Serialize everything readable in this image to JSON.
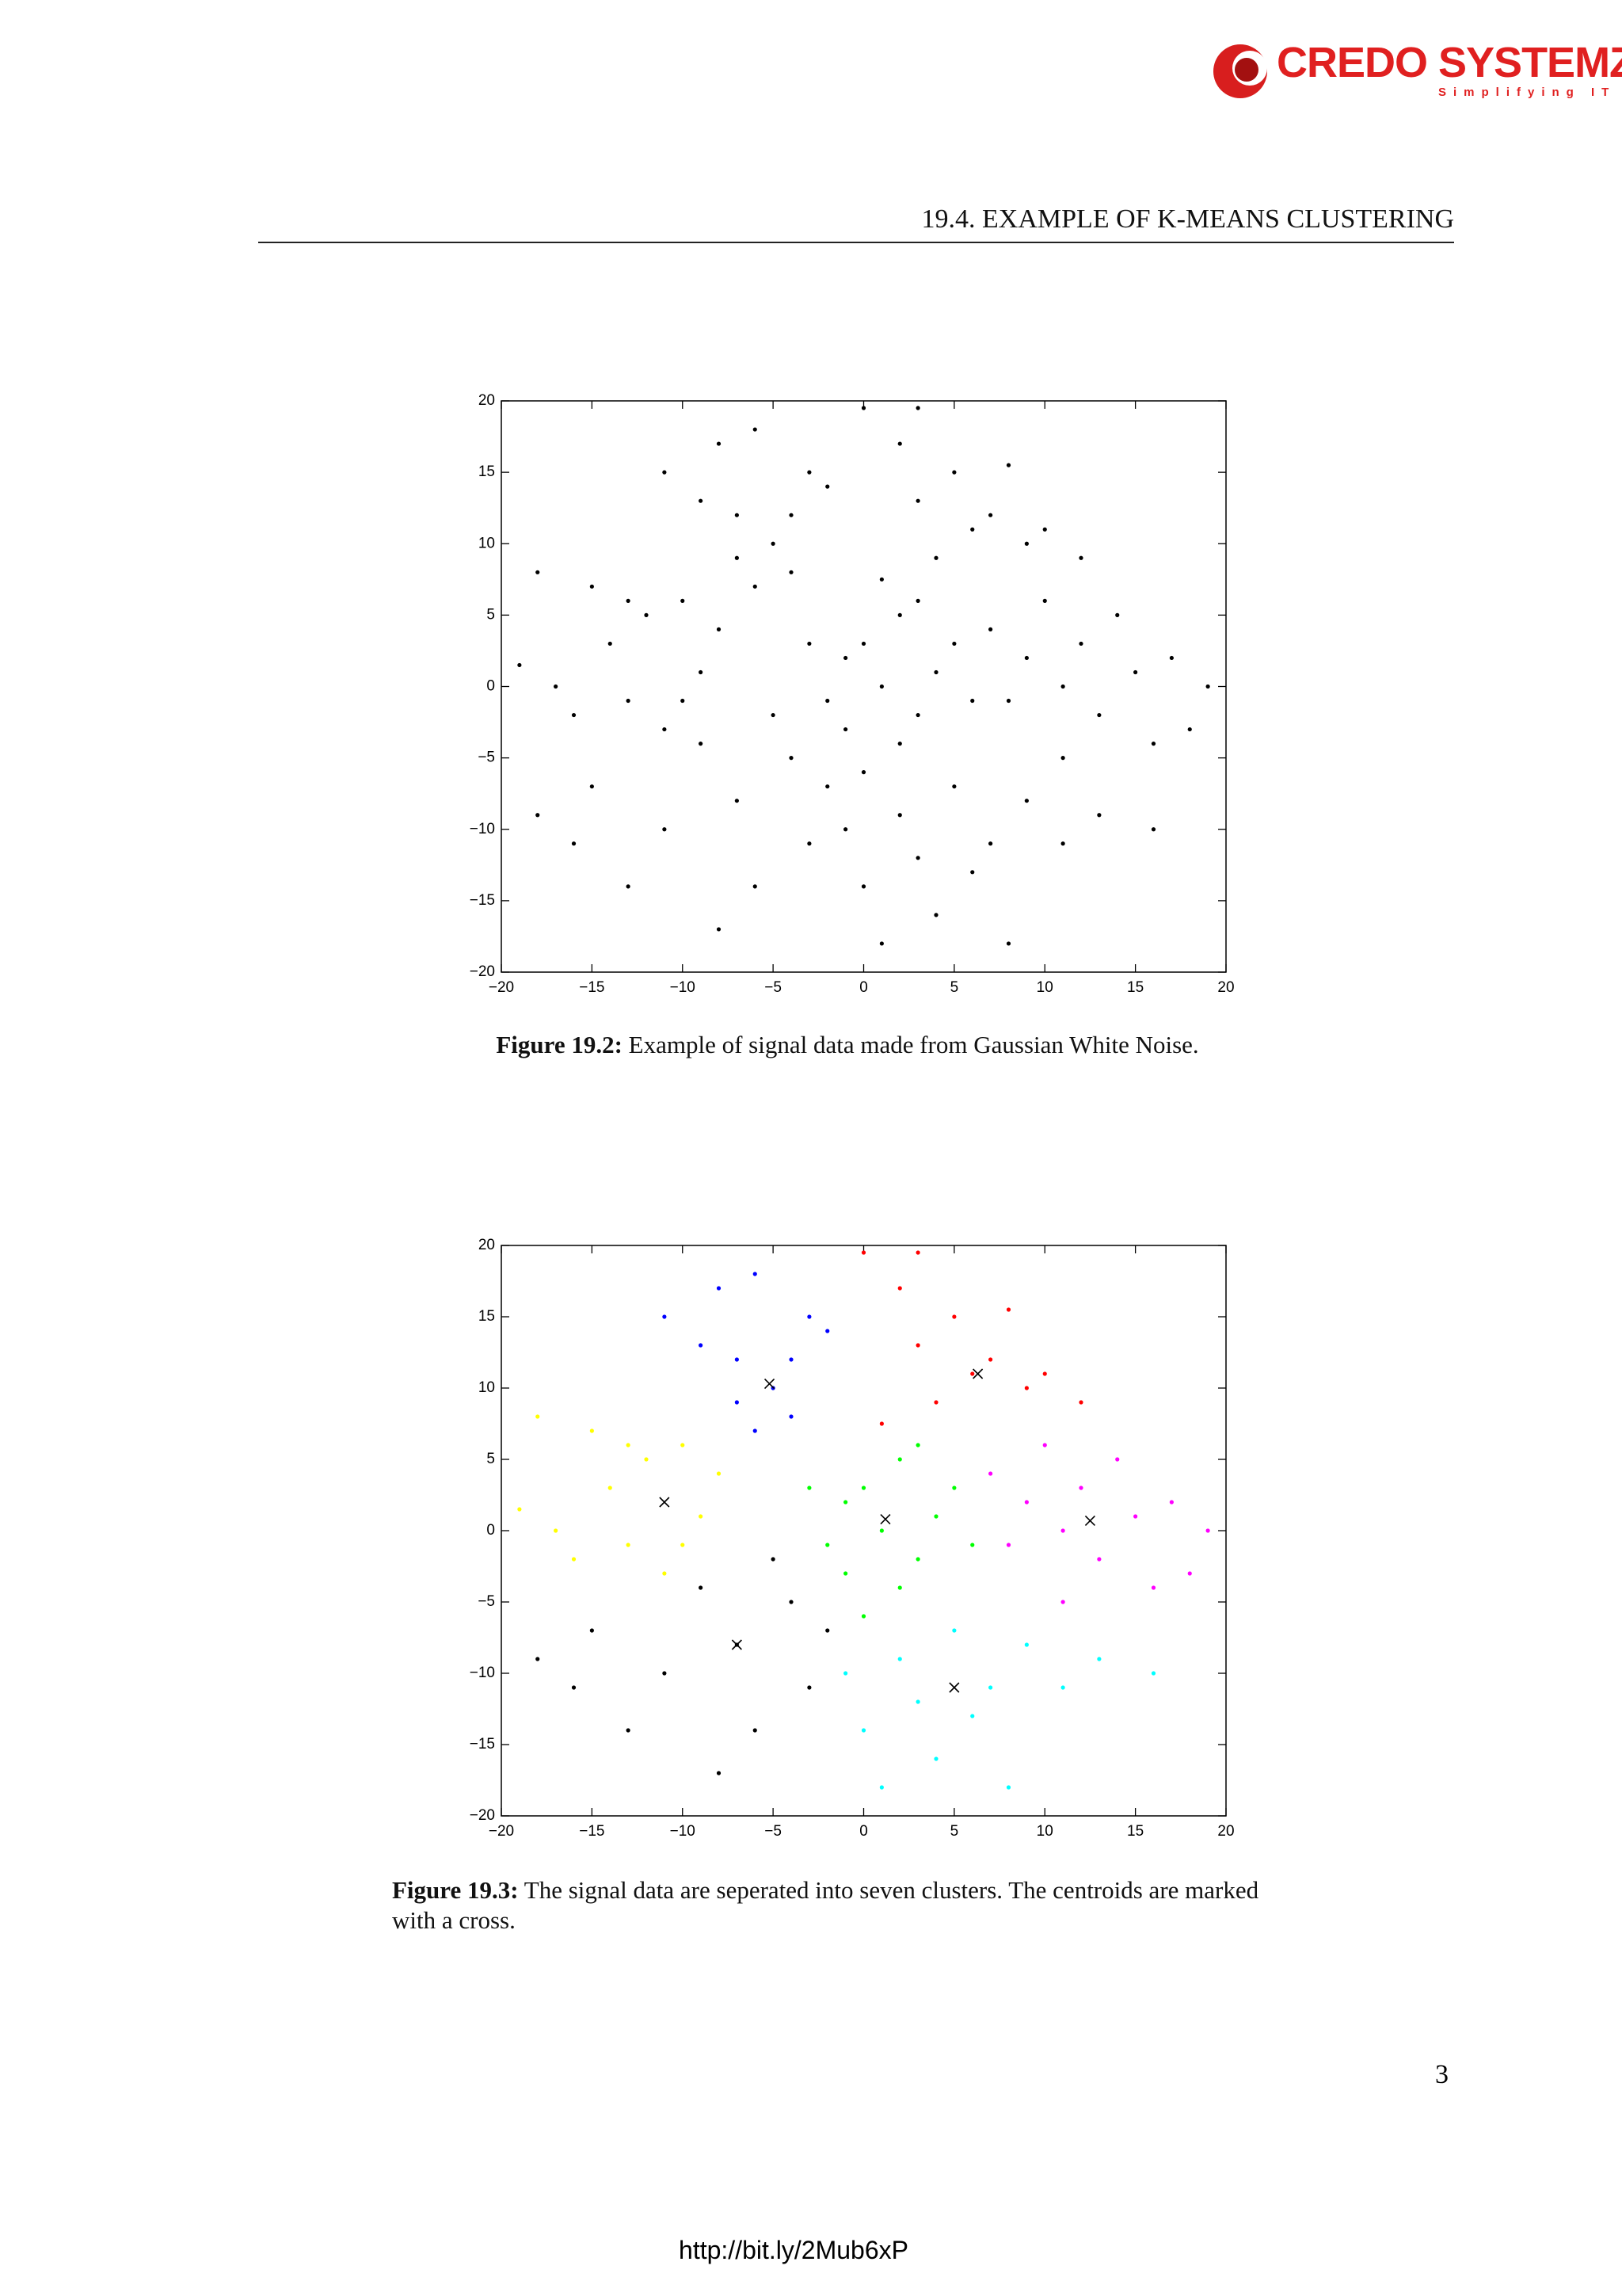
{
  "header": {
    "logo": "CREDO SYSTEMZ",
    "tagline": "Simplifying IT",
    "section": "19.4. EXAMPLE OF K-MEANS CLUSTERING"
  },
  "chart_data": [
    {
      "type": "scatter",
      "caption_label": "Figure 19.2:",
      "caption": "Example of signal data made from Gaussian White Noise.",
      "color": "#000000",
      "x": [
        -19,
        -18,
        -17,
        -16,
        -15,
        -14,
        -13,
        -12,
        -11,
        -10,
        -9,
        -8,
        -10,
        -13,
        -11,
        -9,
        -8,
        -7,
        -6,
        -5,
        -4,
        -3,
        -6,
        -2,
        -4,
        -7,
        0,
        2,
        3,
        5,
        7,
        8,
        10,
        12,
        4,
        6,
        9,
        3,
        1,
        -3,
        -2,
        -1,
        0,
        1,
        2,
        3,
        4,
        5,
        -1,
        2,
        6,
        0,
        3,
        7,
        8,
        9,
        10,
        11,
        12,
        13,
        14,
        15,
        16,
        17,
        18,
        19,
        11,
        -1,
        0,
        1,
        2,
        3,
        4,
        5,
        6,
        7,
        8,
        9,
        11,
        13,
        16,
        -18,
        -16,
        -15,
        -13,
        -11,
        -9,
        -8,
        -7,
        -6,
        -5,
        -4,
        -3,
        -2
      ],
      "y": [
        1.5,
        8,
        0,
        -2,
        7,
        3,
        -1,
        5,
        -3,
        6,
        1,
        4,
        -1,
        6,
        15,
        13,
        17,
        12,
        18,
        10,
        8,
        15,
        7,
        14,
        12,
        9,
        19.5,
        17,
        13,
        15,
        12,
        15.5,
        11,
        9,
        9,
        11,
        10,
        19.5,
        7.5,
        3,
        -1,
        2,
        3,
        0,
        5,
        -2,
        1,
        3,
        -3,
        -4,
        -1,
        -6,
        6,
        4,
        -1,
        2,
        6,
        0,
        3,
        -2,
        5,
        1,
        -4,
        2,
        -3,
        0,
        -5,
        -10,
        -14,
        -18,
        -9,
        -12,
        -16,
        -7,
        -13,
        -11,
        -18,
        -8,
        -11,
        -9,
        -10,
        -9,
        -11,
        -7,
        -14,
        -10,
        -4,
        -17,
        -8,
        -14,
        -2,
        -5,
        -11,
        -7
      ],
      "xlim": [
        -20,
        20
      ],
      "ylim": [
        -20,
        20
      ],
      "xticks": [
        {
          "value": -20,
          "label": "−20"
        },
        {
          "value": -15,
          "label": "−15"
        },
        {
          "value": -10,
          "label": "−10"
        },
        {
          "value": -5,
          "label": "−5"
        },
        0,
        5,
        10,
        15,
        20
      ],
      "yticks": [
        {
          "value": -20,
          "label": "−20"
        },
        {
          "value": -15,
          "label": "−15"
        },
        {
          "value": -10,
          "label": "−10"
        },
        {
          "value": -5,
          "label": "−5"
        },
        0,
        5,
        10,
        15,
        20
      ]
    },
    {
      "type": "scatter",
      "caption_label": "Figure 19.3:",
      "caption": "The signal data are seperated into seven clusters. The centroids are marked with a cross.",
      "series": [
        {
          "color": "#ffff00",
          "x": [
            -19,
            -18,
            -17,
            -16,
            -15,
            -14,
            -13,
            -12,
            -11,
            -10,
            -9,
            -8,
            -10,
            -13
          ],
          "y": [
            1.5,
            8,
            0,
            -2,
            7,
            3,
            -1,
            5,
            -3,
            6,
            1,
            4,
            -1,
            6
          ]
        },
        {
          "color": "#0000ff",
          "x": [
            -11,
            -9,
            -8,
            -7,
            -6,
            -5,
            -4,
            -3,
            -6,
            -2,
            -4,
            -7
          ],
          "y": [
            15,
            13,
            17,
            12,
            18,
            10,
            8,
            15,
            7,
            14,
            12,
            9
          ]
        },
        {
          "color": "#ff0000",
          "x": [
            0,
            2,
            3,
            5,
            7,
            8,
            10,
            12,
            4,
            6,
            9,
            3,
            1
          ],
          "y": [
            19.5,
            17,
            13,
            15,
            12,
            15.5,
            11,
            9,
            9,
            11,
            10,
            19.5,
            7.5
          ]
        },
        {
          "color": "#00ff00",
          "x": [
            -3,
            -2,
            -1,
            0,
            1,
            2,
            3,
            4,
            5,
            -1,
            2,
            6,
            0,
            3
          ],
          "y": [
            3,
            -1,
            2,
            3,
            0,
            5,
            -2,
            1,
            3,
            -3,
            -4,
            -1,
            -6,
            6
          ]
        },
        {
          "color": "#ff00ff",
          "x": [
            7,
            8,
            9,
            10,
            11,
            12,
            13,
            14,
            15,
            16,
            17,
            18,
            19,
            11
          ],
          "y": [
            4,
            -1,
            2,
            6,
            0,
            3,
            -2,
            5,
            1,
            -4,
            2,
            -3,
            0,
            -5
          ]
        },
        {
          "color": "#00ffff",
          "x": [
            -1,
            0,
            1,
            2,
            3,
            4,
            5,
            6,
            7,
            8,
            9,
            11,
            13,
            16
          ],
          "y": [
            -10,
            -14,
            -18,
            -9,
            -12,
            -16,
            -7,
            -13,
            -11,
            -18,
            -8,
            -11,
            -9,
            -10
          ]
        },
        {
          "color": "#000000",
          "x": [
            -18,
            -16,
            -15,
            -13,
            -11,
            -9,
            -8,
            -7,
            -6,
            -5,
            -4,
            -3,
            -2
          ],
          "y": [
            -9,
            -11,
            -7,
            -14,
            -10,
            -4,
            -17,
            -8,
            -14,
            -2,
            -5,
            -11,
            -7
          ]
        }
      ],
      "centroids": {
        "color": "#000000",
        "x": [
          -11,
          -5.2,
          6.3,
          1.2,
          12.5,
          5,
          -7
        ],
        "y": [
          2,
          10.3,
          11,
          0.8,
          0.7,
          -11,
          -8
        ]
      },
      "xlim": [
        -20,
        20
      ],
      "ylim": [
        -20,
        20
      ],
      "xticks": [
        {
          "value": -20,
          "label": "−20"
        },
        {
          "value": -15,
          "label": "−15"
        },
        {
          "value": -10,
          "label": "−10"
        },
        {
          "value": -5,
          "label": "−5"
        },
        0,
        5,
        10,
        15,
        20
      ],
      "yticks": [
        {
          "value": -20,
          "label": "−20"
        },
        {
          "value": -15,
          "label": "−15"
        },
        {
          "value": -10,
          "label": "−10"
        },
        {
          "value": -5,
          "label": "−5"
        },
        0,
        5,
        10,
        15,
        20
      ]
    }
  ],
  "page_number": "3",
  "footer_url": "http://bit.ly/2Mub6xP"
}
